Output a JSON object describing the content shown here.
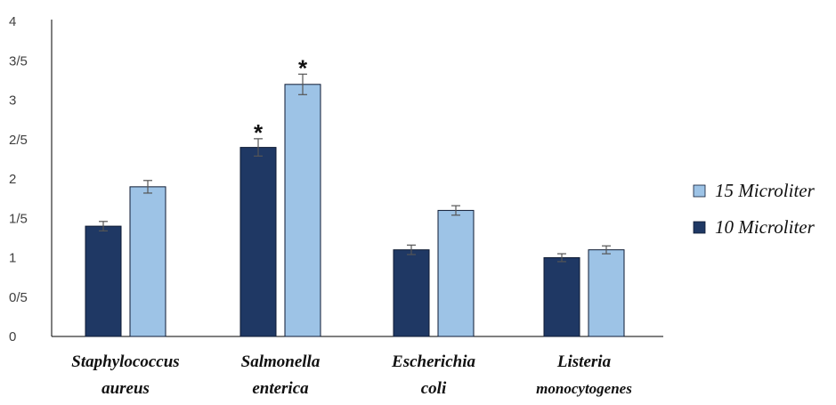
{
  "chart_data": {
    "type": "bar",
    "categories": [
      [
        "Staphylococcus",
        "aureus"
      ],
      [
        "Salmonella",
        "enterica"
      ],
      [
        "Escherichia",
        "coli"
      ],
      [
        "Listeria",
        "monocytogenes"
      ]
    ],
    "series": [
      {
        "name": "10 Microliter",
        "color": "#1f3864",
        "values": [
          1.4,
          2.4,
          1.1,
          1.0
        ],
        "errors": [
          0.06,
          0.11,
          0.06,
          0.05
        ],
        "significance": [
          "",
          "*",
          "",
          ""
        ]
      },
      {
        "name": "15 Microliter",
        "color": "#9dc3e6",
        "values": [
          1.9,
          3.2,
          1.6,
          1.1
        ],
        "errors": [
          0.08,
          0.13,
          0.06,
          0.05
        ],
        "significance": [
          "",
          "*",
          "",
          ""
        ]
      }
    ],
    "y_tick_labels": [
      "0",
      "0/5",
      "1",
      "1/5",
      "2",
      "2/5",
      "3",
      "3/5",
      "4"
    ],
    "ylim": [
      0,
      4
    ],
    "grid": false,
    "legend_position": "right",
    "legend_order": [
      "15 Microliter",
      "10 Microliter"
    ],
    "title": "",
    "xlabel": "",
    "ylabel": ""
  }
}
